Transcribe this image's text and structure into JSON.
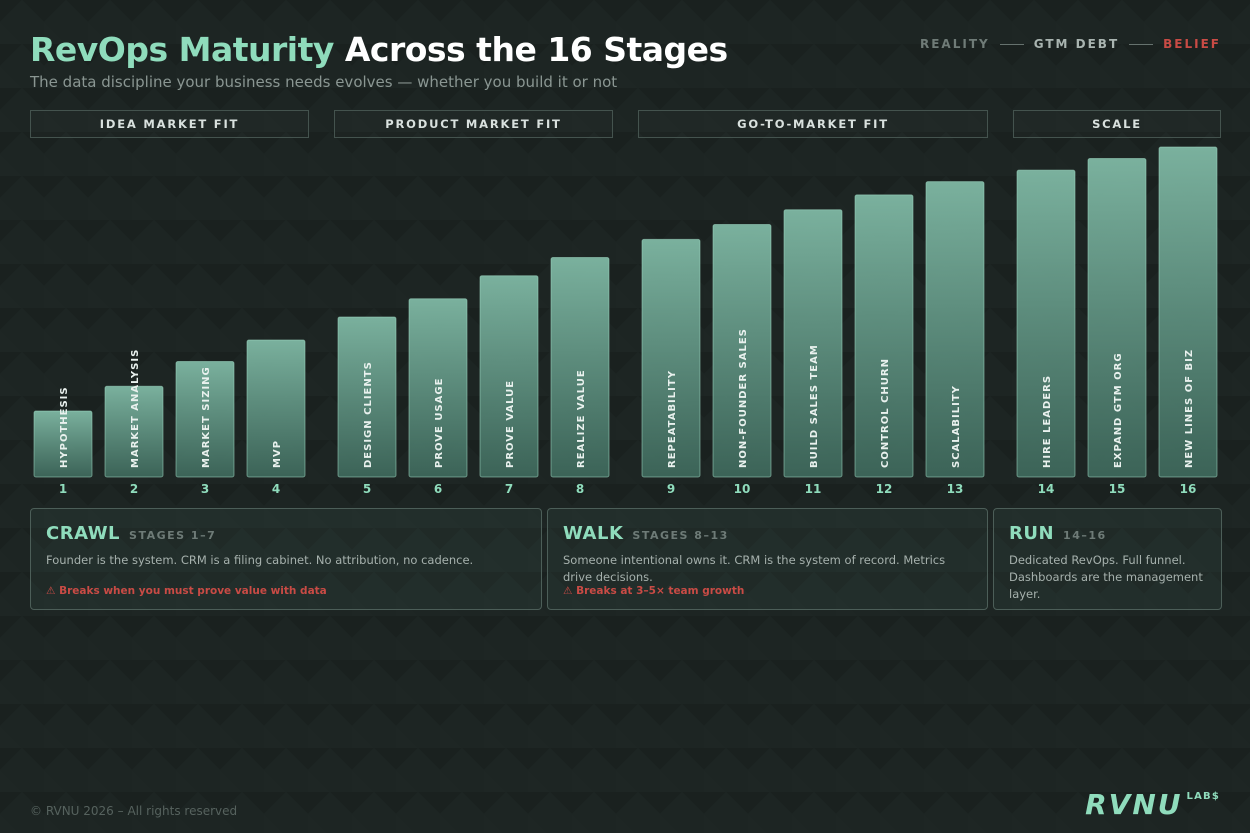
{
  "header": {
    "title_accent": "RevOps Maturity",
    "title_rest": "Across the 16 Stages",
    "subtitle": "The data discipline your business needs evolves — whether you build it or not"
  },
  "legend": {
    "reality": "REALITY",
    "gtm_debt": "GTM DEBT",
    "belief": "BELIEF"
  },
  "phases": [
    {
      "label": "IDEA MARKET FIT"
    },
    {
      "label": "PRODUCT MARKET FIT"
    },
    {
      "label": "GO-TO-MARKET FIT"
    },
    {
      "label": "SCALE"
    }
  ],
  "chart_data": {
    "type": "bar",
    "title": "RevOps Maturity Across the 16 Stages",
    "xlabel": "",
    "ylabel": "",
    "ylim": [
      0,
      100
    ],
    "grid": false,
    "categories": [
      "1",
      "2",
      "3",
      "4",
      "5",
      "6",
      "7",
      "8",
      "9",
      "10",
      "11",
      "12",
      "13",
      "14",
      "15",
      "16"
    ],
    "bar_labels": [
      "HYPOTHESIS",
      "MARKET ANALYSIS",
      "MARKET SIZING",
      "MVP",
      "DESIGN CLIENTS",
      "PROVE USAGE",
      "PROVE VALUE",
      "REALIZE VALUE",
      "REPEATABILITY",
      "NON-FOUNDER SALES",
      "BUILD SALES TEAM",
      "CONTROL CHURN",
      "SCALABILITY",
      "HIRE LEADERS",
      "EXPAND GTM ORG",
      "NEW LINES OF BIZ"
    ],
    "values": [
      20,
      27.5,
      35,
      41.5,
      48.5,
      54,
      61,
      66.5,
      72,
      76.5,
      81,
      85.5,
      89.5,
      93,
      96.5,
      100
    ],
    "phase_index": [
      0,
      0,
      0,
      0,
      1,
      1,
      1,
      1,
      2,
      2,
      2,
      2,
      2,
      3,
      3,
      3
    ]
  },
  "stages": [
    {
      "name": "CRAWL",
      "range": "STAGES 1–7",
      "desc": "Founder is the system. CRM is a filing cabinet. No attribution, no cadence.",
      "warning": "⚠ Breaks when you must prove value with data"
    },
    {
      "name": "WALK",
      "range": "STAGES 8–13",
      "desc": "Someone intentional owns it. CRM is the system of record. Metrics drive decisions.",
      "warning": "⚠ Breaks at 3–5× team growth"
    },
    {
      "name": "RUN",
      "range": "14–16",
      "desc": "Dedicated RevOps. Full funnel. Dashboards are the management layer."
    }
  ],
  "footer": {
    "copyright": "© RVNU 2026 – All rights reserved",
    "logo_main": "RVNU",
    "logo_sub": "LAB$"
  },
  "colors": {
    "accent": "#8fdcbc",
    "bar_fill_top": "#7fb8a4",
    "bar_fill_bottom": "#3f6a5d",
    "warning": "#c94b45",
    "background": "#1d2523"
  }
}
